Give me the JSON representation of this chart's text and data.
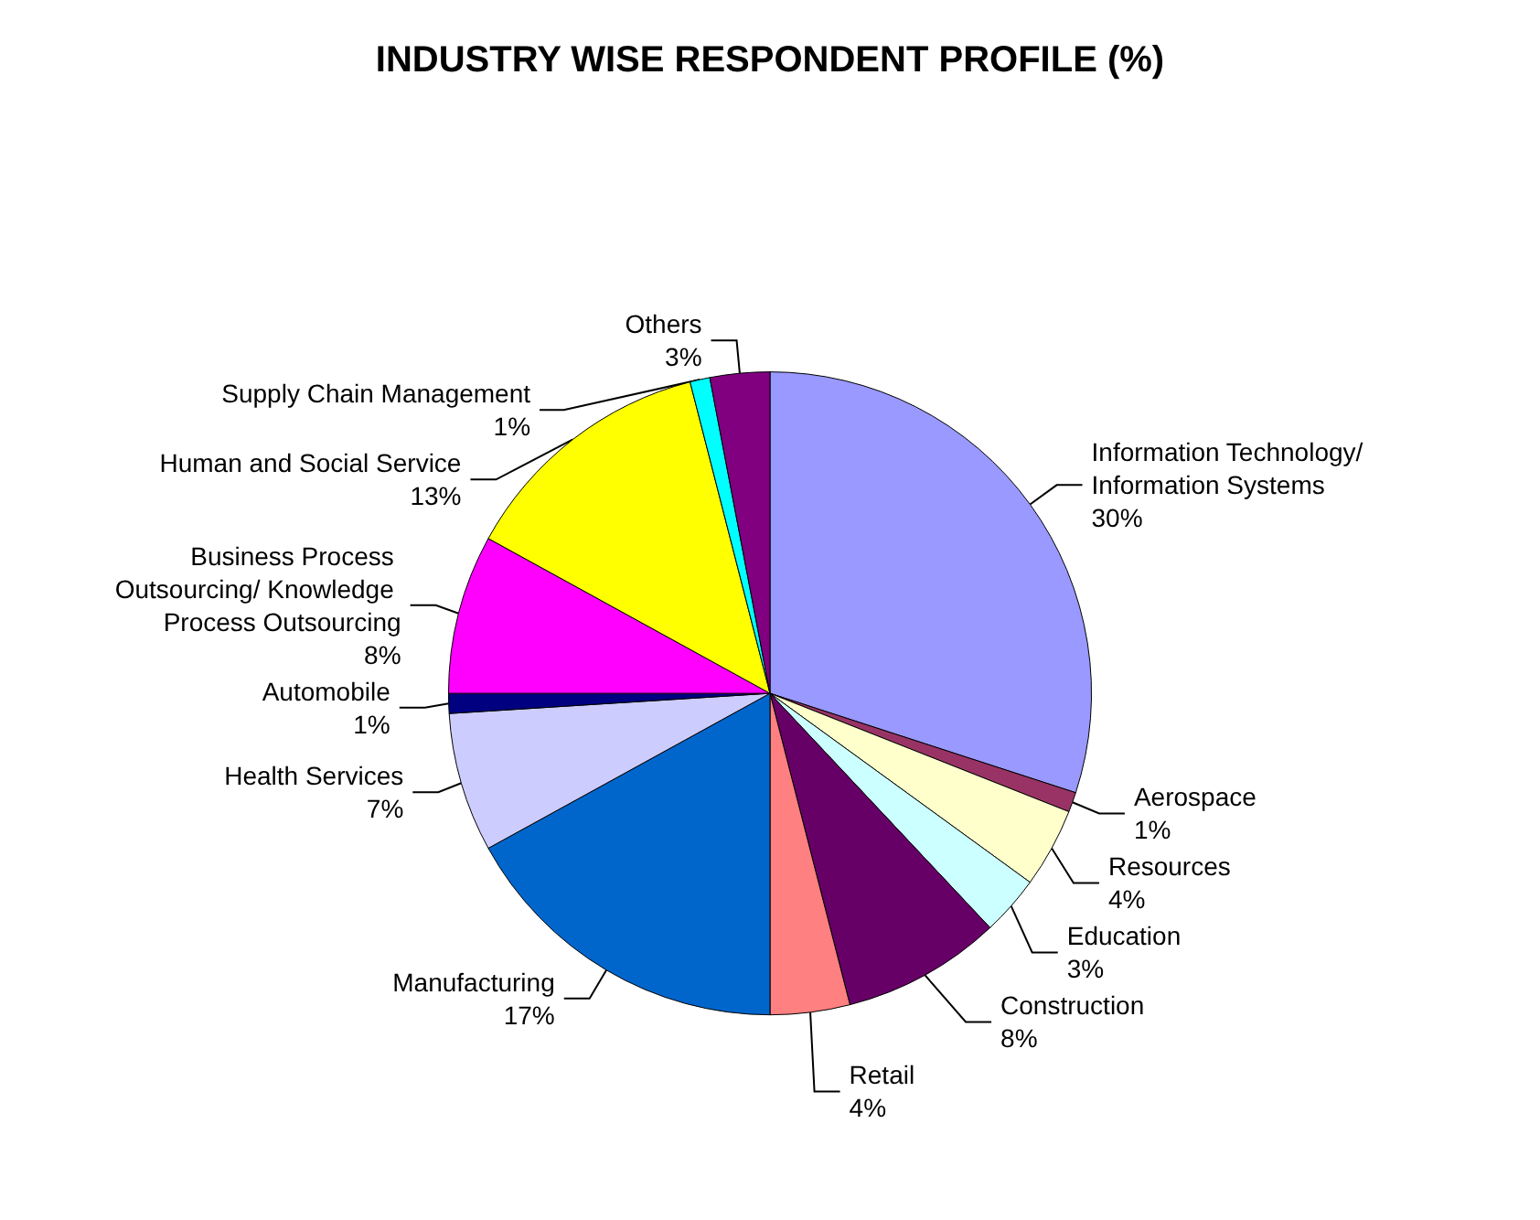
{
  "chart_data": {
    "type": "pie",
    "title": "INDUSTRY WISE RESPONDENT PROFILE (%)",
    "categories": [
      "Information Technology/ Information Systems",
      "Aerospace",
      "Resources",
      "Education",
      "Construction",
      "Retail",
      "Manufacturing",
      "Health Services",
      "Automobile",
      "Business Process Outsourcing/ Knowledge Process Outsourcing",
      "Human and Social Service",
      "Supply Chain Management",
      "Others"
    ],
    "values": [
      30,
      1,
      4,
      3,
      8,
      4,
      17,
      7,
      1,
      8,
      13,
      1,
      3
    ],
    "value_labels": [
      "30%",
      "1%",
      "4%",
      "3%",
      "8%",
      "4%",
      "17%",
      "7%",
      "1%",
      "8%",
      "13%",
      "1%",
      "3%"
    ],
    "colors": [
      "#9999ff",
      "#993366",
      "#ffffcc",
      "#ccffff",
      "#660066",
      "#ff8080",
      "#0066cc",
      "#ccccff",
      "#000080",
      "#ff00ff",
      "#ffff00",
      "#00ffff",
      "#800080"
    ],
    "legend": false
  }
}
